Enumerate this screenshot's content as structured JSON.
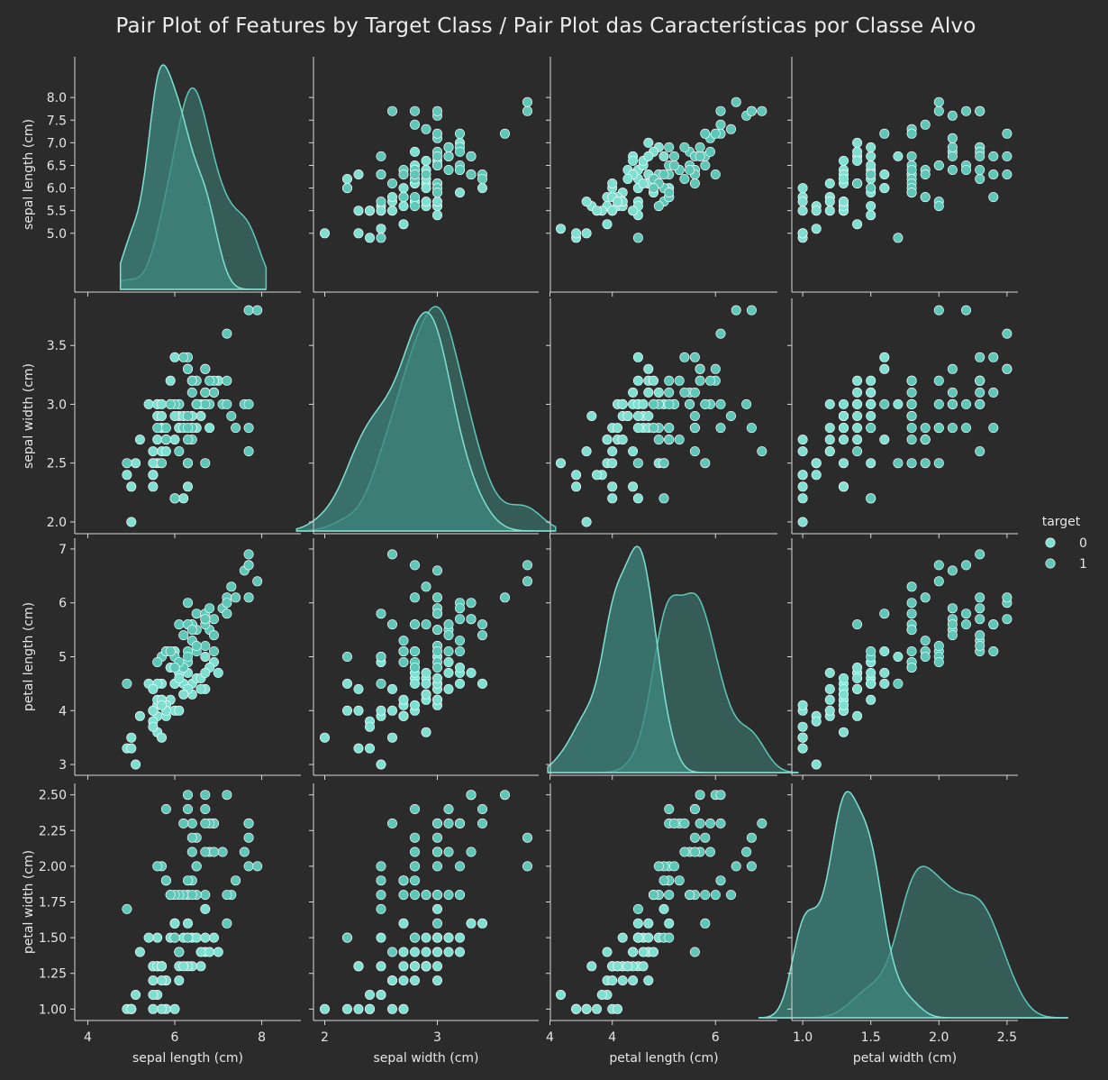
{
  "title": "Pair Plot of Features by Target Class / Pair Plot das Características por Classe Alvo",
  "colors": {
    "background": "#2b2b2b",
    "axis": "#d8d8d8",
    "text": "#e6e6e6",
    "class0": "#7fe0d2",
    "class1": "#5ec7b8",
    "kde_fill0": "#3f8a80",
    "kde_fill1": "#3b6d68",
    "marker_edge": "#ffffff"
  },
  "legend": {
    "title": "target",
    "entries": [
      "0",
      "1"
    ],
    "placement": "right"
  },
  "chart_data": {
    "type": "scatter",
    "subtype": "pairplot",
    "hue": "target",
    "variables": [
      "sepal length (cm)",
      "sepal width (cm)",
      "petal length (cm)",
      "petal width (cm)"
    ],
    "axis_ranges": [
      [
        3.7,
        8.9
      ],
      [
        1.9,
        3.9
      ],
      [
        2.8,
        7.2
      ],
      [
        0.92,
        2.58
      ]
    ],
    "diagonal_ranges": [
      [
        4.75,
        8.1
      ],
      [
        1.75,
        4.05
      ],
      [
        2.75,
        7.6
      ],
      [
        0.68,
        2.95
      ]
    ],
    "ticks": [
      [
        "4",
        "6",
        "8"
      ],
      [
        "2",
        "3",
        "4"
      ],
      [
        "4",
        "6"
      ],
      [
        "1.0",
        "1.5",
        "2.0",
        "2.5"
      ]
    ],
    "y_tick_labels": [
      [
        "5.0",
        "5.5",
        "6.0",
        "6.5",
        "7.0",
        "7.5",
        "8.0"
      ],
      [
        "2.0",
        "2.5",
        "3.0",
        "3.5"
      ],
      [
        "3",
        "4",
        "5",
        "6",
        "7"
      ],
      [
        "1.00",
        "1.25",
        "1.50",
        "1.75",
        "2.00",
        "2.25",
        "2.50"
      ]
    ],
    "y_tick_values": [
      [
        5.0,
        5.5,
        6.0,
        6.5,
        7.0,
        7.5,
        8.0
      ],
      [
        2.0,
        2.5,
        3.0,
        3.5
      ],
      [
        3,
        4,
        5,
        6,
        7
      ],
      [
        1.0,
        1.25,
        1.5,
        1.75,
        2.0,
        2.25,
        2.5
      ]
    ],
    "x_tick_values": [
      [
        4,
        6,
        8
      ],
      [
        2,
        3,
        4
      ],
      [
        4,
        6
      ],
      [
        1.0,
        1.5,
        2.0,
        2.5
      ]
    ],
    "series": [
      {
        "name": "0",
        "points": [
          [
            7.0,
            3.2,
            4.7,
            1.4
          ],
          [
            6.4,
            3.2,
            4.5,
            1.5
          ],
          [
            6.9,
            3.1,
            4.9,
            1.5
          ],
          [
            5.5,
            2.3,
            4.0,
            1.3
          ],
          [
            6.5,
            2.8,
            4.6,
            1.5
          ],
          [
            5.7,
            2.8,
            4.5,
            1.3
          ],
          [
            6.3,
            3.3,
            4.7,
            1.6
          ],
          [
            4.9,
            2.4,
            3.3,
            1.0
          ],
          [
            6.6,
            2.9,
            4.6,
            1.3
          ],
          [
            5.2,
            2.7,
            3.9,
            1.4
          ],
          [
            5.0,
            2.0,
            3.5,
            1.0
          ],
          [
            5.9,
            3.0,
            4.2,
            1.5
          ],
          [
            6.0,
            2.2,
            4.0,
            1.0
          ],
          [
            6.1,
            2.9,
            4.7,
            1.4
          ],
          [
            5.6,
            2.9,
            3.6,
            1.3
          ],
          [
            6.7,
            3.1,
            4.4,
            1.4
          ],
          [
            5.6,
            3.0,
            4.5,
            1.5
          ],
          [
            5.8,
            2.7,
            4.1,
            1.0
          ],
          [
            6.2,
            2.2,
            4.5,
            1.5
          ],
          [
            5.6,
            2.5,
            3.9,
            1.1
          ],
          [
            5.9,
            3.2,
            4.8,
            1.8
          ],
          [
            6.1,
            2.8,
            4.0,
            1.3
          ],
          [
            6.3,
            2.5,
            4.9,
            1.5
          ],
          [
            6.1,
            2.8,
            4.7,
            1.2
          ],
          [
            6.4,
            2.9,
            4.3,
            1.3
          ],
          [
            6.6,
            3.0,
            4.4,
            1.4
          ],
          [
            6.8,
            2.8,
            4.8,
            1.4
          ],
          [
            6.7,
            3.0,
            5.0,
            1.7
          ],
          [
            6.0,
            2.9,
            4.5,
            1.5
          ],
          [
            5.7,
            2.6,
            3.5,
            1.0
          ],
          [
            5.5,
            2.4,
            3.8,
            1.1
          ],
          [
            5.5,
            2.4,
            3.7,
            1.0
          ],
          [
            5.8,
            2.7,
            3.9,
            1.2
          ],
          [
            6.0,
            2.7,
            5.1,
            1.6
          ],
          [
            5.4,
            3.0,
            4.5,
            1.5
          ],
          [
            6.0,
            3.4,
            4.5,
            1.6
          ],
          [
            6.7,
            3.1,
            4.7,
            1.5
          ],
          [
            6.3,
            2.3,
            4.4,
            1.3
          ],
          [
            5.6,
            3.0,
            4.1,
            1.3
          ],
          [
            5.5,
            2.5,
            4.0,
            1.3
          ],
          [
            5.5,
            2.6,
            4.4,
            1.2
          ],
          [
            6.1,
            3.0,
            4.6,
            1.4
          ],
          [
            5.8,
            2.6,
            4.0,
            1.2
          ],
          [
            5.0,
            2.3,
            3.3,
            1.0
          ],
          [
            5.6,
            2.7,
            4.2,
            1.3
          ],
          [
            5.7,
            3.0,
            4.2,
            1.2
          ],
          [
            5.7,
            2.9,
            4.2,
            1.3
          ],
          [
            6.2,
            2.9,
            4.3,
            1.3
          ],
          [
            5.1,
            2.5,
            3.0,
            1.1
          ],
          [
            5.7,
            2.8,
            4.1,
            1.3
          ]
        ]
      },
      {
        "name": "1",
        "points": [
          [
            6.3,
            3.3,
            6.0,
            2.5
          ],
          [
            5.8,
            2.7,
            5.1,
            1.9
          ],
          [
            7.1,
            3.0,
            5.9,
            2.1
          ],
          [
            6.3,
            2.9,
            5.6,
            1.8
          ],
          [
            6.5,
            3.0,
            5.8,
            2.2
          ],
          [
            7.6,
            3.0,
            6.6,
            2.1
          ],
          [
            4.9,
            2.5,
            4.5,
            1.7
          ],
          [
            7.3,
            2.9,
            6.3,
            1.8
          ],
          [
            6.7,
            2.5,
            5.8,
            1.8
          ],
          [
            7.2,
            3.6,
            6.1,
            2.5
          ],
          [
            6.5,
            3.2,
            5.1,
            2.0
          ],
          [
            6.4,
            2.7,
            5.3,
            1.9
          ],
          [
            6.8,
            3.0,
            5.5,
            2.1
          ],
          [
            5.7,
            2.5,
            5.0,
            2.0
          ],
          [
            5.8,
            2.8,
            5.1,
            2.4
          ],
          [
            6.4,
            3.2,
            5.3,
            2.3
          ],
          [
            6.5,
            3.0,
            5.5,
            1.8
          ],
          [
            7.7,
            3.8,
            6.7,
            2.2
          ],
          [
            7.7,
            2.6,
            6.9,
            2.3
          ],
          [
            6.0,
            2.2,
            5.0,
            1.5
          ],
          [
            6.9,
            3.2,
            5.7,
            2.3
          ],
          [
            5.6,
            2.8,
            4.9,
            2.0
          ],
          [
            7.7,
            2.8,
            6.7,
            2.0
          ],
          [
            6.3,
            2.7,
            4.9,
            1.8
          ],
          [
            6.7,
            3.3,
            5.7,
            2.1
          ],
          [
            7.2,
            3.2,
            6.0,
            1.8
          ],
          [
            6.2,
            2.8,
            4.8,
            1.8
          ],
          [
            6.1,
            3.0,
            4.9,
            1.8
          ],
          [
            6.4,
            2.8,
            5.6,
            2.1
          ],
          [
            7.2,
            3.0,
            5.8,
            1.6
          ],
          [
            7.4,
            2.8,
            6.1,
            1.9
          ],
          [
            7.9,
            3.8,
            6.4,
            2.0
          ],
          [
            6.4,
            2.8,
            5.6,
            2.2
          ],
          [
            6.3,
            2.8,
            5.1,
            1.5
          ],
          [
            6.1,
            2.6,
            5.6,
            1.4
          ],
          [
            7.7,
            3.0,
            6.1,
            2.3
          ],
          [
            6.3,
            3.4,
            5.6,
            2.4
          ],
          [
            6.4,
            3.1,
            5.5,
            1.8
          ],
          [
            6.0,
            3.0,
            4.8,
            1.8
          ],
          [
            6.9,
            3.1,
            5.4,
            2.1
          ],
          [
            6.7,
            3.1,
            5.6,
            2.4
          ],
          [
            6.9,
            3.1,
            5.1,
            2.3
          ],
          [
            5.8,
            2.7,
            5.1,
            1.9
          ],
          [
            6.8,
            3.2,
            5.9,
            2.3
          ],
          [
            6.7,
            3.3,
            5.7,
            2.5
          ],
          [
            6.7,
            3.0,
            5.2,
            2.3
          ],
          [
            6.3,
            2.5,
            5.0,
            1.9
          ],
          [
            6.5,
            3.0,
            5.2,
            2.0
          ],
          [
            6.2,
            3.4,
            5.4,
            2.3
          ],
          [
            5.9,
            3.0,
            5.1,
            1.8
          ]
        ]
      }
    ]
  }
}
